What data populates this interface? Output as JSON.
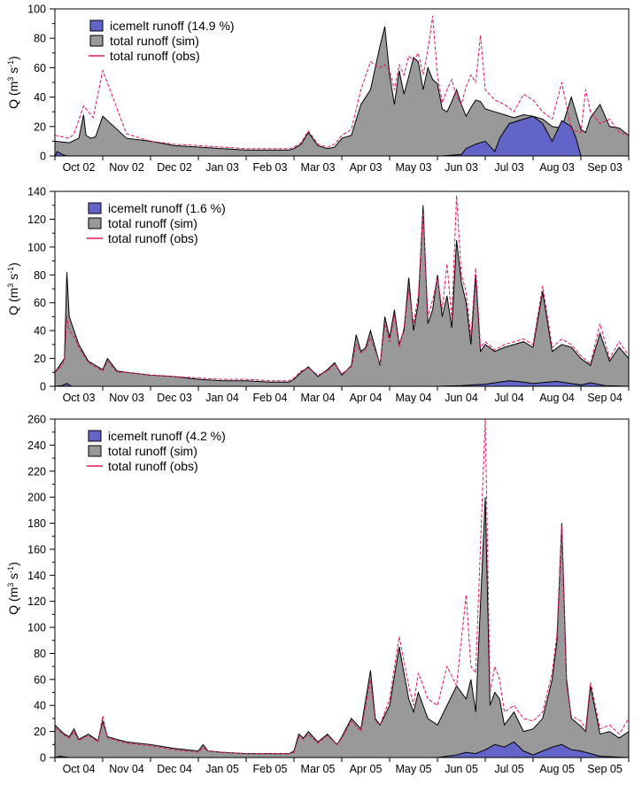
{
  "chart_data": [
    {
      "type": "area",
      "ylabel": "Q (m3 s-1)",
      "ylim": [
        0,
        100
      ],
      "ytick_step": 20,
      "yminor_step": 10,
      "month_labels": [
        "Oct 02",
        "Nov 02",
        "Dec 02",
        "Jan 03",
        "Feb 03",
        "Mar 03",
        "Apr 03",
        "May 03",
        "Jun 03",
        "Jul 03",
        "Aug 03",
        "Sep 03"
      ],
      "legend": [
        "icemelt runoff (14.9 %)",
        "total runoff (sim)",
        "total runoff (obs)"
      ],
      "legend_placement": "top-left",
      "grid": false,
      "series": [
        {
          "name": "total runoff (sim)",
          "color": "#999999",
          "x": [
            0,
            0.3,
            0.5,
            0.6,
            0.65,
            0.75,
            0.85,
            1.0,
            1.5,
            2.0,
            2.5,
            3.0,
            3.5,
            4.0,
            4.5,
            4.9,
            5.0,
            5.15,
            5.3,
            5.5,
            5.7,
            5.85,
            6.0,
            6.2,
            6.4,
            6.6,
            6.8,
            6.9,
            7.0,
            7.1,
            7.2,
            7.3,
            7.4,
            7.5,
            7.6,
            7.7,
            7.8,
            7.9,
            8.0,
            8.1,
            8.2,
            8.3,
            8.4,
            8.5,
            8.6,
            8.7,
            8.8,
            8.9,
            9.0,
            9.2,
            9.4,
            9.6,
            9.8,
            10.0,
            10.2,
            10.4,
            10.6,
            10.8,
            11.0,
            11.1,
            11.2,
            11.4,
            11.6,
            11.8,
            12.0
          ],
          "values": [
            10,
            9,
            12,
            28,
            14,
            12,
            13,
            27,
            12,
            10,
            7,
            6,
            5,
            4,
            4,
            4,
            5,
            8,
            16,
            7,
            5,
            6,
            12,
            14,
            35,
            45,
            75,
            88,
            55,
            35,
            58,
            42,
            54,
            67,
            64,
            45,
            60,
            52,
            49,
            32,
            30,
            37,
            45,
            35,
            27,
            33,
            38,
            37,
            32,
            30,
            28,
            26,
            28,
            27,
            25,
            20,
            19,
            40,
            18,
            16,
            26,
            35,
            20,
            19,
            14
          ]
        },
        {
          "name": "total runoff (obs)",
          "color": "#e0195a",
          "x": [
            0,
            0.3,
            0.4,
            0.6,
            0.8,
            1.0,
            1.5,
            2.0,
            2.5,
            3.0,
            3.5,
            4.0,
            4.5,
            4.9,
            5.0,
            5.15,
            5.3,
            5.5,
            5.7,
            5.85,
            6.0,
            6.2,
            6.4,
            6.6,
            6.8,
            6.9,
            7.0,
            7.1,
            7.2,
            7.3,
            7.4,
            7.5,
            7.6,
            7.7,
            7.8,
            7.9,
            8.0,
            8.1,
            8.2,
            8.3,
            8.4,
            8.5,
            8.6,
            8.7,
            8.8,
            8.9,
            9.0,
            9.2,
            9.4,
            9.6,
            9.8,
            10.0,
            10.2,
            10.4,
            10.6,
            10.8,
            11.0,
            11.1,
            11.2,
            11.4,
            11.6,
            11.8,
            12.0
          ],
          "values": [
            14,
            12,
            15,
            34,
            26,
            58,
            15,
            10,
            8,
            7,
            6,
            5,
            5,
            5,
            6,
            9,
            17,
            8,
            6,
            8,
            14,
            18,
            45,
            64,
            60,
            62,
            58,
            45,
            62,
            55,
            68,
            65,
            70,
            55,
            72,
            95,
            55,
            36,
            45,
            52,
            40,
            35,
            47,
            55,
            50,
            82,
            45,
            38,
            35,
            30,
            42,
            38,
            30,
            25,
            50,
            18,
            16,
            45,
            30,
            22,
            25,
            16,
            14
          ]
        },
        {
          "name": "icemelt runoff (14.9 %)",
          "color": "#6264c8",
          "x": [
            0,
            0.05,
            0.15,
            0.25,
            5.0,
            7.0,
            7.5,
            8.0,
            8.1,
            8.3,
            8.5,
            8.6,
            8.8,
            9.0,
            9.2,
            9.3,
            9.5,
            9.8,
            10.0,
            10.2,
            10.4,
            10.6,
            10.8,
            10.9,
            11.0,
            12.0
          ],
          "values": [
            0,
            3,
            1,
            0,
            0,
            0,
            0,
            0,
            0,
            0.5,
            1,
            5,
            8,
            10,
            3,
            12,
            22,
            25,
            27,
            22,
            10,
            24,
            20,
            12,
            0,
            0
          ]
        }
      ]
    },
    {
      "type": "area",
      "ylabel": "Q (m3 s-1)",
      "ylim": [
        0,
        140
      ],
      "ytick_step": 20,
      "yminor_step": 10,
      "month_labels": [
        "Oct 03",
        "Nov 03",
        "Dec 03",
        "Jan 04",
        "Feb 04",
        "Mar 04",
        "Apr 04",
        "May 04",
        "Jun 04",
        "Jul 04",
        "Aug 04",
        "Sep 04"
      ],
      "legend": [
        "icemelt runoff (1.6 %)",
        "total runoff (sim)",
        "total runoff (obs)"
      ],
      "legend_placement": "top-center",
      "grid": false,
      "series": [
        {
          "name": "total runoff (sim)",
          "color": "#999999",
          "x": [
            0,
            0.1,
            0.2,
            0.25,
            0.3,
            0.4,
            0.5,
            0.7,
            0.9,
            1.0,
            1.1,
            1.3,
            1.5,
            2.0,
            2.5,
            3.0,
            3.5,
            4.0,
            4.5,
            4.9,
            5.0,
            5.15,
            5.3,
            5.5,
            5.7,
            5.85,
            6.0,
            6.2,
            6.3,
            6.4,
            6.5,
            6.6,
            6.8,
            6.9,
            7.0,
            7.1,
            7.2,
            7.3,
            7.4,
            7.5,
            7.6,
            7.7,
            7.8,
            7.9,
            8.0,
            8.1,
            8.2,
            8.3,
            8.4,
            8.5,
            8.6,
            8.7,
            8.8,
            8.9,
            9.0,
            9.2,
            9.4,
            9.6,
            9.8,
            10.0,
            10.2,
            10.4,
            10.6,
            10.8,
            11.0,
            11.2,
            11.4,
            11.6,
            11.8,
            12.0
          ],
          "values": [
            10,
            15,
            20,
            82,
            50,
            40,
            30,
            18,
            14,
            12,
            20,
            11,
            10,
            8,
            7,
            5,
            4,
            4,
            3,
            3,
            5,
            10,
            14,
            7,
            12,
            17,
            8,
            15,
            37,
            25,
            28,
            40,
            15,
            50,
            35,
            55,
            30,
            40,
            78,
            40,
            60,
            130,
            45,
            55,
            80,
            50,
            65,
            42,
            105,
            75,
            60,
            30,
            80,
            25,
            30,
            25,
            28,
            30,
            32,
            28,
            68,
            25,
            30,
            28,
            20,
            15,
            38,
            18,
            28,
            20
          ]
        },
        {
          "name": "total runoff (obs)",
          "color": "#e0195a",
          "x": [
            0,
            0.1,
            0.2,
            0.25,
            0.3,
            0.4,
            0.5,
            0.7,
            0.9,
            1.0,
            1.1,
            1.3,
            1.5,
            2.0,
            2.5,
            3.0,
            3.5,
            4.0,
            4.5,
            4.9,
            5.0,
            5.15,
            5.3,
            5.5,
            5.7,
            5.85,
            6.0,
            6.2,
            6.3,
            6.4,
            6.5,
            6.6,
            6.8,
            6.9,
            7.0,
            7.1,
            7.2,
            7.3,
            7.4,
            7.5,
            7.6,
            7.7,
            7.8,
            7.9,
            8.0,
            8.1,
            8.2,
            8.3,
            8.4,
            8.5,
            8.6,
            8.7,
            8.8,
            8.9,
            9.0,
            9.2,
            9.4,
            9.6,
            9.8,
            10.0,
            10.2,
            10.4,
            10.6,
            10.8,
            11.0,
            11.2,
            11.4,
            11.6,
            11.8,
            12.0
          ],
          "values": [
            10,
            13,
            18,
            50,
            40,
            36,
            28,
            17,
            13,
            11,
            18,
            10,
            10,
            8,
            7,
            6,
            5,
            5,
            4,
            4,
            6,
            11,
            13,
            8,
            11,
            16,
            9,
            14,
            30,
            24,
            26,
            35,
            16,
            45,
            32,
            52,
            28,
            42,
            70,
            45,
            65,
            125,
            50,
            62,
            78,
            55,
            88,
            48,
            137,
            80,
            68,
            35,
            85,
            28,
            32,
            26,
            30,
            32,
            34,
            30,
            72,
            28,
            34,
            30,
            22,
            16,
            45,
            20,
            32,
            22
          ]
        },
        {
          "name": "icemelt runoff (1.6 %)",
          "color": "#6264c8",
          "x": [
            0,
            0.15,
            0.25,
            0.35,
            5.0,
            8.0,
            8.5,
            9.0,
            9.3,
            9.5,
            9.8,
            10.0,
            10.3,
            10.5,
            10.8,
            11.0,
            11.2,
            11.5,
            12.0
          ],
          "values": [
            0,
            0.5,
            2,
            0,
            0,
            0,
            0.5,
            1.5,
            3,
            4,
            3,
            2,
            3,
            3.5,
            2,
            1,
            2.5,
            0.5,
            0
          ]
        }
      ]
    },
    {
      "type": "area",
      "ylabel": "Q (m3 s-1)",
      "ylim": [
        0,
        260
      ],
      "ytick_step": 20,
      "yminor_step": 10,
      "month_labels": [
        "Oct 04",
        "Nov 04",
        "Dec 04",
        "Jan 05",
        "Feb 05",
        "Mar 05",
        "Apr 05",
        "May 05",
        "Jun 05",
        "Jul 05",
        "Aug 05",
        "Sep 05"
      ],
      "legend": [
        "icemelt runoff (4.2 %)",
        "total runoff (sim)",
        "total runoff (obs)"
      ],
      "legend_placement": "top-center",
      "grid": false,
      "series": [
        {
          "name": "total runoff (sim)",
          "color": "#999999",
          "x": [
            0,
            0.2,
            0.3,
            0.4,
            0.5,
            0.7,
            0.9,
            1.0,
            1.1,
            1.3,
            1.5,
            2.0,
            2.5,
            3.0,
            3.1,
            3.2,
            3.5,
            4.0,
            4.5,
            4.9,
            5.0,
            5.1,
            5.2,
            5.3,
            5.5,
            5.7,
            5.9,
            6.0,
            6.2,
            6.4,
            6.6,
            6.7,
            6.8,
            7.0,
            7.2,
            7.4,
            7.5,
            7.6,
            7.8,
            8.0,
            8.2,
            8.4,
            8.6,
            8.7,
            8.8,
            9.0,
            9.1,
            9.2,
            9.3,
            9.4,
            9.6,
            9.8,
            10.0,
            10.2,
            10.4,
            10.5,
            10.6,
            10.7,
            10.8,
            11.0,
            11.1,
            11.2,
            11.4,
            11.6,
            11.8,
            12.0
          ],
          "values": [
            25,
            18,
            16,
            22,
            14,
            18,
            13,
            28,
            16,
            14,
            12,
            10,
            7,
            5,
            10,
            5,
            4,
            3,
            3,
            3,
            5,
            18,
            15,
            20,
            12,
            18,
            10,
            16,
            30,
            22,
            67,
            30,
            25,
            40,
            85,
            45,
            35,
            50,
            30,
            25,
            40,
            55,
            45,
            60,
            35,
            200,
            40,
            50,
            45,
            25,
            35,
            20,
            22,
            30,
            60,
            90,
            180,
            60,
            30,
            24,
            20,
            55,
            18,
            20,
            15,
            20
          ]
        },
        {
          "name": "total runoff (obs)",
          "color": "#e0195a",
          "x": [
            0,
            0.2,
            0.3,
            0.4,
            0.5,
            0.7,
            0.9,
            1.0,
            1.1,
            1.3,
            1.5,
            2.0,
            2.5,
            3.0,
            3.1,
            3.2,
            3.5,
            4.0,
            4.5,
            4.9,
            5.0,
            5.1,
            5.2,
            5.3,
            5.5,
            5.7,
            5.9,
            6.0,
            6.2,
            6.4,
            6.6,
            6.7,
            6.8,
            7.0,
            7.2,
            7.4,
            7.5,
            7.6,
            7.8,
            8.0,
            8.2,
            8.4,
            8.6,
            8.7,
            8.8,
            9.0,
            9.1,
            9.2,
            9.3,
            9.4,
            9.6,
            9.8,
            10.0,
            10.2,
            10.4,
            10.5,
            10.6,
            10.7,
            10.8,
            11.0,
            11.1,
            11.2,
            11.4,
            11.6,
            11.8,
            12.0
          ],
          "values": [
            23,
            17,
            15,
            20,
            13,
            17,
            12,
            32,
            15,
            13,
            11,
            9,
            6,
            4,
            8,
            5,
            4,
            3,
            3,
            3,
            4,
            16,
            14,
            18,
            11,
            17,
            10,
            15,
            28,
            20,
            60,
            28,
            25,
            45,
            93,
            55,
            40,
            65,
            45,
            40,
            70,
            55,
            125,
            70,
            65,
            260,
            50,
            70,
            60,
            35,
            40,
            30,
            28,
            35,
            65,
            95,
            178,
            55,
            32,
            28,
            22,
            58,
            22,
            25,
            18,
            30
          ]
        },
        {
          "name": "icemelt runoff (4.2 %)",
          "color": "#6264c8",
          "x": [
            0,
            0.1,
            0.2,
            0.3,
            5.0,
            8.0,
            8.4,
            8.6,
            8.8,
            9.0,
            9.2,
            9.4,
            9.6,
            9.8,
            10.0,
            10.2,
            10.4,
            10.6,
            10.8,
            11.0,
            11.2,
            11.4,
            12.0
          ],
          "values": [
            0,
            1,
            0.5,
            0,
            0,
            0,
            2,
            4,
            3,
            6,
            10,
            8,
            12,
            5,
            2,
            5,
            8,
            10,
            6,
            5,
            3,
            1,
            0
          ]
        }
      ]
    }
  ]
}
